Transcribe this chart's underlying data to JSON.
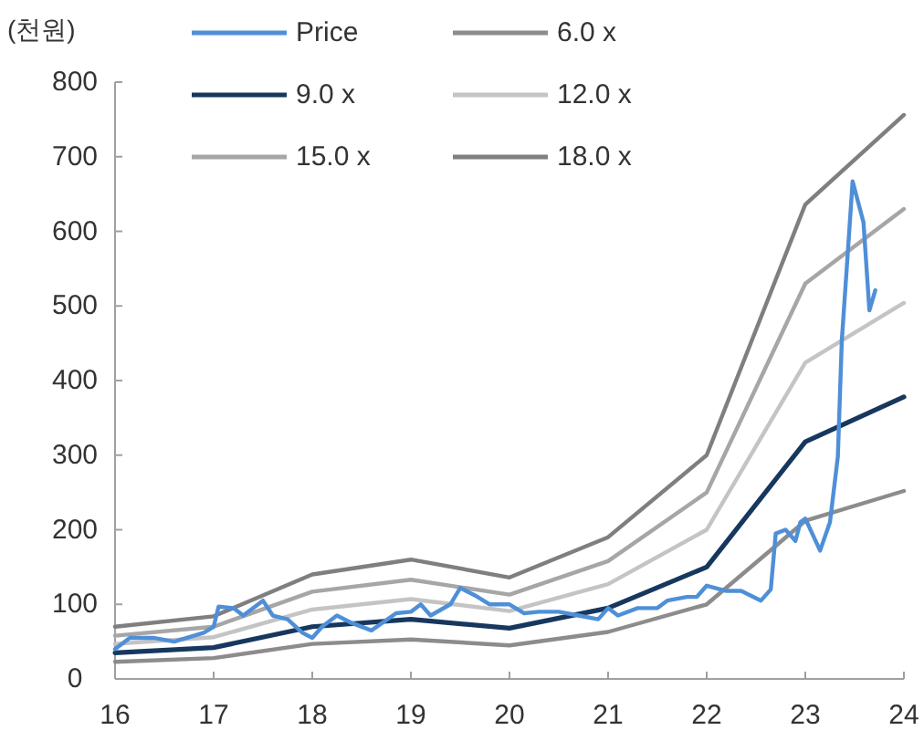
{
  "chart_data": {
    "type": "line",
    "ylabel": "(천원)",
    "x": [
      16,
      17,
      18,
      19,
      20,
      21,
      22,
      23,
      24
    ],
    "xlim": [
      16,
      24
    ],
    "xticks": [
      16,
      17,
      18,
      19,
      20,
      21,
      22,
      23,
      24
    ],
    "ylim": [
      0,
      800
    ],
    "yticks": [
      0,
      100,
      200,
      300,
      400,
      500,
      600,
      700,
      800
    ],
    "legend": "top left",
    "grid": false,
    "series": [
      {
        "name": "Price",
        "color": "#4f8fd8",
        "x": [
          16.0,
          16.15,
          16.4,
          16.6,
          16.9,
          17.0,
          17.05,
          17.2,
          17.3,
          17.5,
          17.6,
          17.75,
          17.9,
          18.0,
          18.1,
          18.25,
          18.4,
          18.6,
          18.85,
          19.0,
          19.1,
          19.2,
          19.4,
          19.5,
          19.65,
          19.8,
          19.9,
          20.0,
          20.15,
          20.3,
          20.5,
          20.7,
          20.9,
          21.0,
          21.1,
          21.3,
          21.5,
          21.6,
          21.8,
          21.9,
          22.0,
          22.2,
          22.35,
          22.55,
          22.65,
          22.7,
          22.8,
          22.9,
          22.95,
          23.0,
          23.15,
          23.25,
          23.33,
          23.37,
          23.48,
          23.59,
          23.65,
          23.71
        ],
        "values": [
          40,
          55,
          55,
          50,
          62,
          70,
          97,
          95,
          85,
          105,
          85,
          80,
          62,
          55,
          70,
          85,
          75,
          65,
          88,
          90,
          100,
          85,
          100,
          122,
          112,
          100,
          100,
          100,
          88,
          90,
          90,
          85,
          80,
          95,
          85,
          95,
          95,
          105,
          110,
          110,
          125,
          118,
          118,
          105,
          120,
          195,
          200,
          185,
          210,
          215,
          172,
          210,
          298,
          453,
          667,
          612,
          494,
          521
        ]
      },
      {
        "name": "6.0 x",
        "color": "#8c8c8c",
        "values": [
          23,
          28,
          47,
          53,
          45,
          63,
          100,
          212,
          252
        ]
      },
      {
        "name": "9.0 x",
        "color": "#17375e",
        "values": [
          35,
          42,
          70,
          80,
          68,
          95,
          150,
          318,
          378
        ]
      },
      {
        "name": "12.0 x",
        "color": "#c4c4c4",
        "values": [
          47,
          56,
          93,
          107,
          91,
          127,
          200,
          424,
          504
        ]
      },
      {
        "name": "15.0 x",
        "color": "#a6a6a6",
        "values": [
          58,
          70,
          117,
          133,
          113,
          158,
          250,
          530,
          630
        ]
      },
      {
        "name": "18.0 x",
        "color": "#7f7f7f",
        "values": [
          70,
          84,
          140,
          160,
          136,
          190,
          300,
          636,
          756
        ]
      }
    ]
  }
}
